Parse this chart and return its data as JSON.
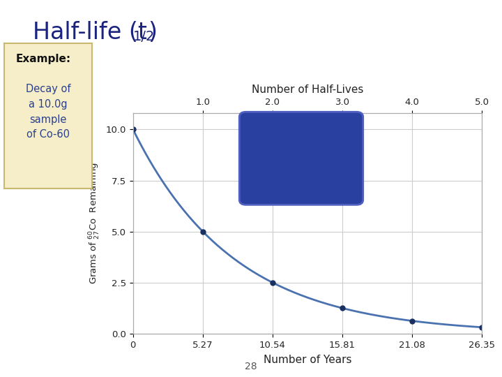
{
  "background_color": "#ffffff",
  "x_data": [
    0,
    5.27,
    10.54,
    15.81,
    21.08,
    26.35
  ],
  "y_data": [
    10.0,
    5.0,
    2.5,
    1.25,
    0.625,
    0.3125
  ],
  "x_ticks": [
    0,
    5.27,
    10.54,
    15.81,
    21.08,
    26.35
  ],
  "x_tick_labels": [
    "0",
    "5.27",
    "10.54",
    "15.81",
    "21.08",
    "26.35"
  ],
  "y_ticks": [
    0.0,
    2.5,
    5.0,
    7.5,
    10.0
  ],
  "y_tick_labels": [
    "0.0",
    "2.5",
    "5.0",
    "7.5",
    "10.0"
  ],
  "xlabel": "Number of Years",
  "ylabel_prefix": "Grams of ",
  "ylabel_suffix": "Co  Remaining",
  "top_xlabel": "Number of Half-Lives",
  "top_x_ticks": [
    1.0,
    2.0,
    3.0,
    4.0,
    5.0
  ],
  "xlim": [
    0,
    26.35
  ],
  "ylim": [
    0,
    10.8
  ],
  "line_color": "#4a72b0",
  "marker_color": "#1a3060",
  "grid_color": "#cccccc",
  "example_box_color": "#f5eec8",
  "example_box_border": "#c8b870",
  "example_title": "Example:",
  "example_text": "Decay of\na 10.0g\nsample\nof Co-60",
  "title_main": "Half-life (t",
  "title_sub": "1/2",
  "title_close": ")",
  "title_color": "#1a237e",
  "co_box_color": "#2a40a0",
  "co_text_color": "#ffffff",
  "page_number": "28",
  "half_life": 5.27
}
